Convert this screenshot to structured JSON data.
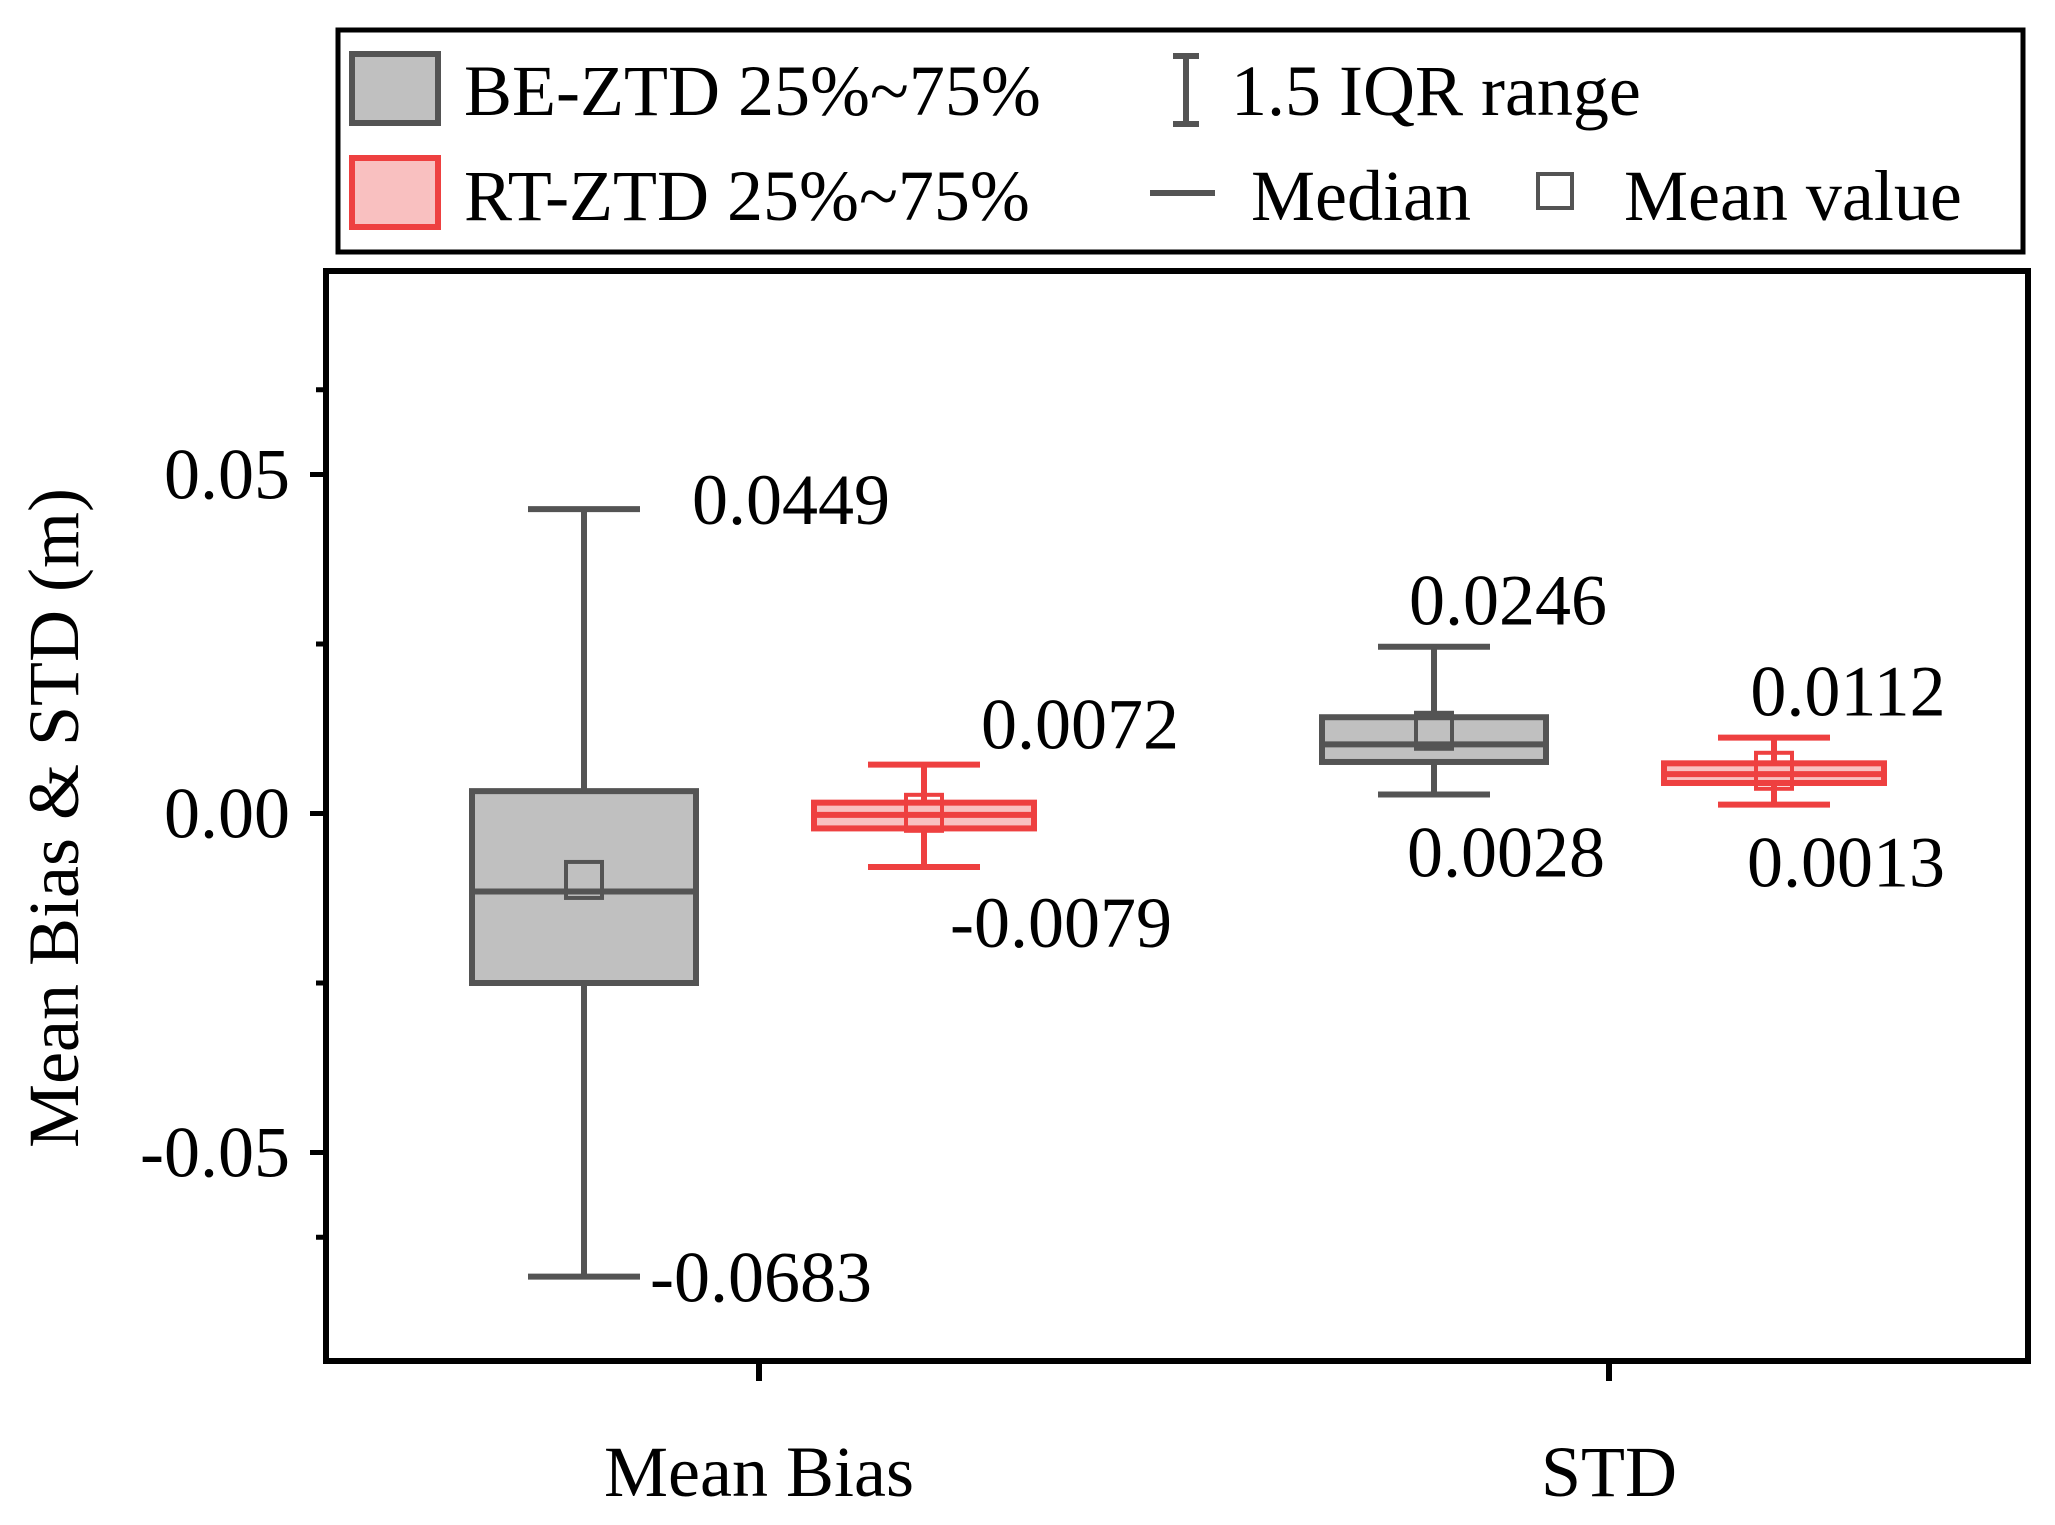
{
  "chart_data": {
    "type": "box",
    "categories": [
      "Mean Bias",
      "STD"
    ],
    "ylabel": "Mean Bias & STD (m)",
    "xlabel": "",
    "ylim": [
      -0.075,
      0.075
    ],
    "yticks": [
      -0.05,
      0.0,
      0.05
    ],
    "ytick_labels": [
      "-0.05",
      "0.00",
      "0.05"
    ],
    "grid": false,
    "legend_position": "top",
    "series": [
      {
        "name": "BE-ZTD",
        "label": "BE-ZTD 25%~75%",
        "fill": "#c0c0c0",
        "stroke": "#545454",
        "boxes": [
          {
            "category": "Mean Bias",
            "whisker_low": -0.0683,
            "q1": -0.025,
            "median": -0.0115,
            "q3": 0.0033,
            "mean": -0.0098,
            "whisker_high": 0.0449
          },
          {
            "category": "STD",
            "whisker_low": 0.0028,
            "q1": 0.0076,
            "median": 0.0102,
            "q3": 0.0142,
            "mean": 0.0122,
            "whisker_high": 0.0246
          }
        ]
      },
      {
        "name": "RT-ZTD",
        "label": "RT-ZTD 25%~75%",
        "fill": "#f9c0c0",
        "stroke": "#ee4040",
        "boxes": [
          {
            "category": "Mean Bias",
            "whisker_low": -0.0079,
            "q1": -0.0022,
            "median": -0.0002,
            "q3": 0.0016,
            "mean": 0.0001,
            "whisker_high": 0.0072
          },
          {
            "category": "STD",
            "whisker_low": 0.0013,
            "q1": 0.0045,
            "median": 0.0058,
            "q3": 0.0074,
            "mean": 0.0063,
            "whisker_high": 0.0112
          }
        ]
      }
    ],
    "annotations": [
      {
        "text": "0.0449",
        "value": 0.0449,
        "series": "BE-ZTD",
        "category": "Mean Bias",
        "anchor": "right-of-top"
      },
      {
        "text": "-0.0683",
        "value": -0.0683,
        "series": "BE-ZTD",
        "category": "Mean Bias",
        "anchor": "right-of-bottom"
      },
      {
        "text": "0.0072",
        "value": 0.0072,
        "series": "RT-ZTD",
        "category": "Mean Bias",
        "anchor": "above-right-of-top"
      },
      {
        "text": "-0.0079",
        "value": -0.0079,
        "series": "RT-ZTD",
        "category": "Mean Bias",
        "anchor": "below-right-of-bottom"
      },
      {
        "text": "0.0246",
        "value": 0.0246,
        "series": "BE-ZTD",
        "category": "STD",
        "anchor": "above-top"
      },
      {
        "text": "0.0028",
        "value": 0.0028,
        "series": "BE-ZTD",
        "category": "STD",
        "anchor": "below-bottom"
      },
      {
        "text": "0.0112",
        "value": 0.0112,
        "series": "RT-ZTD",
        "category": "STD",
        "anchor": "above-top"
      },
      {
        "text": "0.0013",
        "value": 0.0013,
        "series": "RT-ZTD",
        "category": "STD",
        "anchor": "below-bottom"
      }
    ],
    "legend": {
      "items": [
        {
          "label": "BE-ZTD 25%~75%",
          "symbol": "box",
          "series": "BE-ZTD"
        },
        {
          "label": "1.5 IQR range",
          "symbol": "whisker"
        },
        {
          "label": "RT-ZTD 25%~75%",
          "symbol": "box",
          "series": "RT-ZTD"
        },
        {
          "label": "Median",
          "symbol": "line"
        },
        {
          "label": "Mean value",
          "symbol": "square"
        }
      ]
    }
  }
}
